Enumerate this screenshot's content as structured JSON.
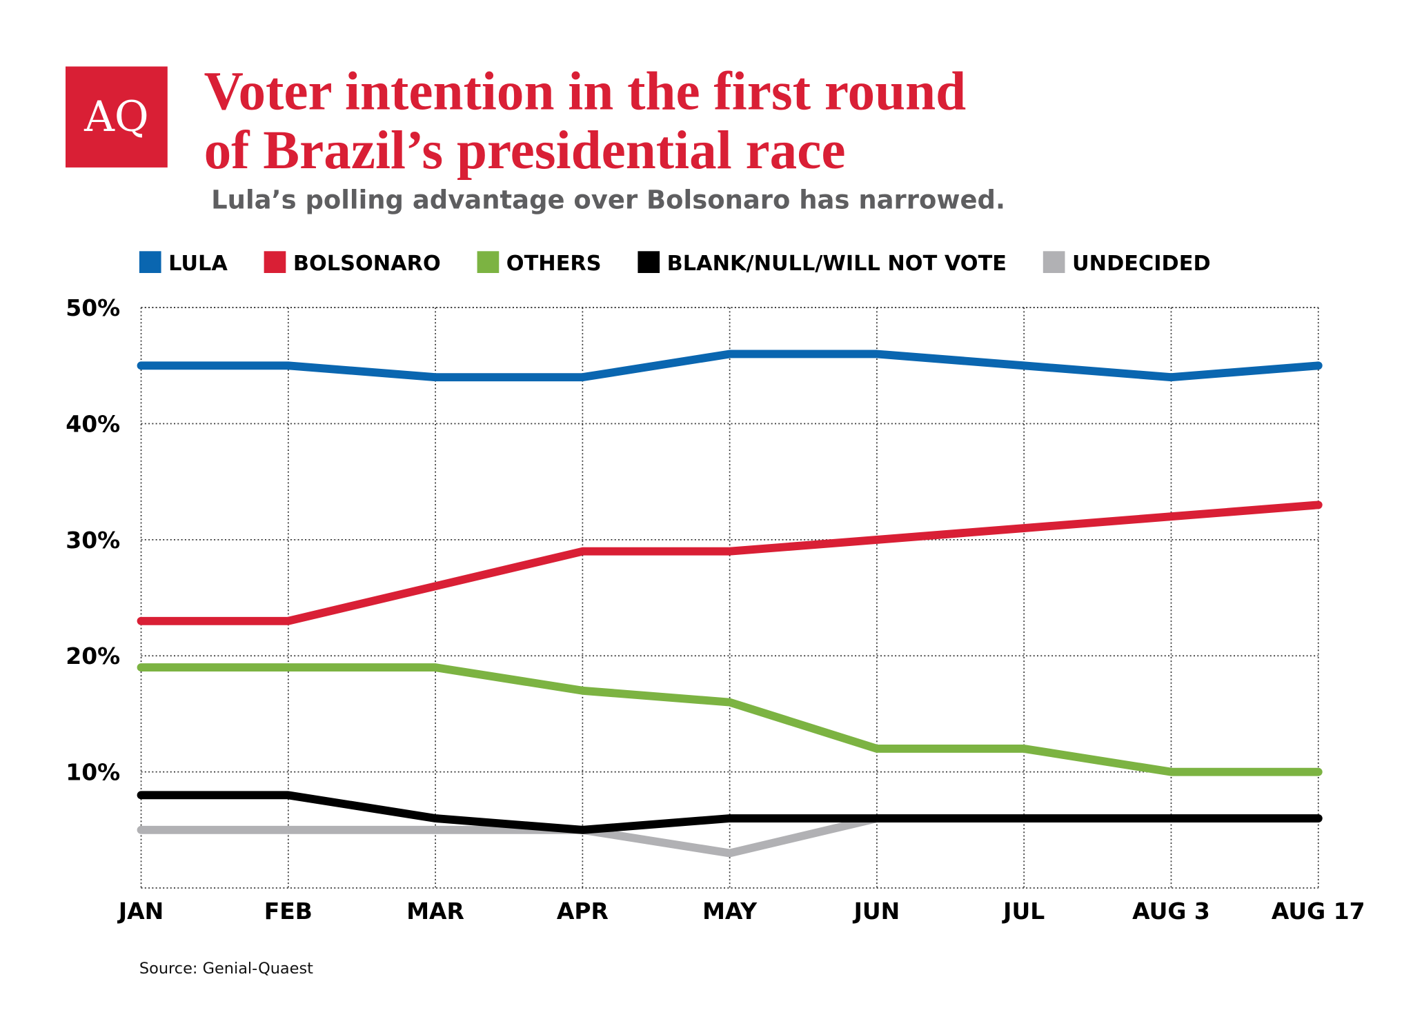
{
  "chart_data": {
    "type": "line",
    "logo": "AQ",
    "title": [
      "Voter intention in the first round",
      "of Brazil’s presidential race"
    ],
    "subtitle": "Lula’s polling advantage over Bolsonaro has narrowed.",
    "categories": [
      "JAN",
      "FEB",
      "MAR",
      "APR",
      "MAY",
      "JUN",
      "JUL",
      "AUG 3",
      "AUG 17"
    ],
    "series": [
      {
        "name": "LULA",
        "color": "#0a66b0",
        "values": [
          45,
          45,
          44,
          44,
          46,
          46,
          45,
          44,
          45
        ]
      },
      {
        "name": "BOLSONARO",
        "color": "#d91f35",
        "values": [
          23,
          23,
          26,
          29,
          29,
          30,
          31,
          32,
          33
        ]
      },
      {
        "name": "OTHERS",
        "color": "#7cb342",
        "values": [
          19,
          19,
          19,
          17,
          16,
          12,
          12,
          10,
          10
        ]
      },
      {
        "name": "BLANK/NULL/WILL NOT VOTE",
        "color": "#000000",
        "values": [
          8,
          8,
          6,
          5,
          6,
          6,
          6,
          6,
          6
        ]
      },
      {
        "name": "UNDECIDED",
        "color": "#b1b1b4",
        "values": [
          5,
          5,
          5,
          5,
          3,
          6,
          6,
          6,
          6
        ]
      }
    ],
    "ylim": [
      0,
      50
    ],
    "yticks": [
      {
        "value": 10,
        "label": "10%"
      },
      {
        "value": 20,
        "label": "20%"
      },
      {
        "value": 30,
        "label": "30%"
      },
      {
        "value": 40,
        "label": "40%"
      },
      {
        "value": 50,
        "label": "50%"
      }
    ],
    "grid": true,
    "legend": "top",
    "source": "Source: Genial-Quaest"
  }
}
